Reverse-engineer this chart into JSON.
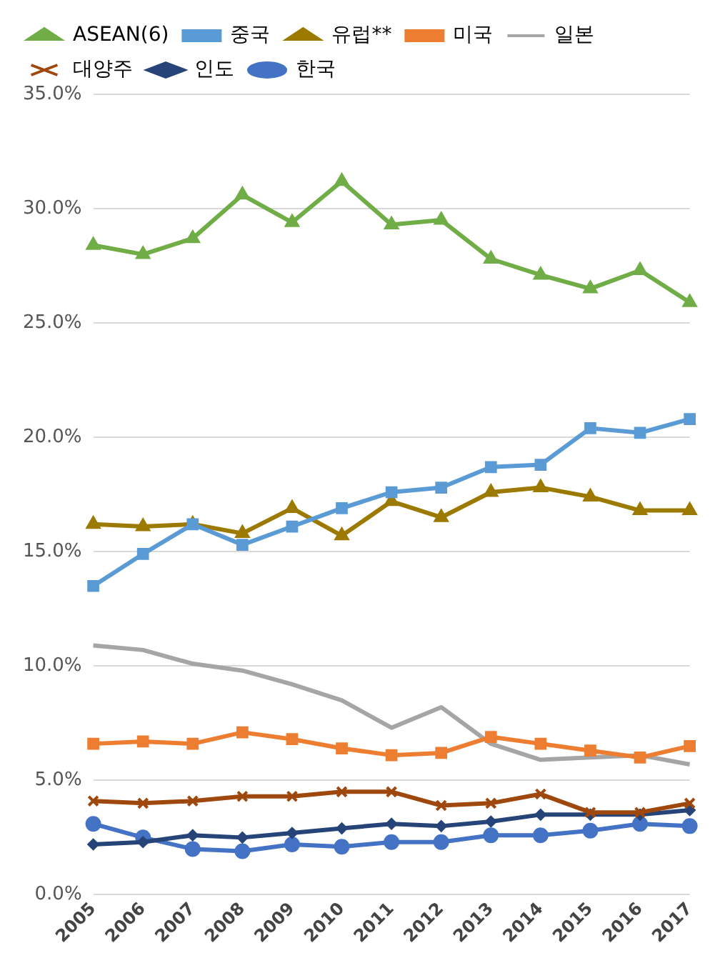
{
  "chart_data": {
    "type": "line",
    "categories": [
      "2005",
      "2006",
      "2007",
      "2008",
      "2009",
      "2010",
      "2011",
      "2012",
      "2013",
      "2014",
      "2015",
      "2016",
      "2017"
    ],
    "series": [
      {
        "name": "ASEAN(6)",
        "color": "#70ad47",
        "marker": "triangle",
        "values": [
          28.4,
          28.0,
          28.7,
          30.6,
          29.4,
          31.2,
          29.3,
          29.5,
          27.8,
          27.1,
          26.5,
          27.3,
          25.9
        ]
      },
      {
        "name": "중국",
        "color": "#5b9bd5",
        "marker": "square",
        "values": [
          13.5,
          14.9,
          16.2,
          15.3,
          16.1,
          16.9,
          17.6,
          17.8,
          18.7,
          18.8,
          20.4,
          20.2,
          20.8
        ]
      },
      {
        "name": "유럽**",
        "color": "#9c7a00",
        "marker": "triangle",
        "values": [
          16.2,
          16.1,
          16.2,
          15.8,
          16.9,
          15.7,
          17.2,
          16.5,
          17.6,
          17.8,
          17.4,
          16.8,
          16.8
        ]
      },
      {
        "name": "미국",
        "color": "#ed7d31",
        "marker": "square",
        "values": [
          6.6,
          6.7,
          6.6,
          7.1,
          6.8,
          6.4,
          6.1,
          6.2,
          6.9,
          6.6,
          6.3,
          6.0,
          6.5
        ]
      },
      {
        "name": "일본",
        "color": "#a5a5a5",
        "marker": "none",
        "values": [
          10.9,
          10.7,
          10.1,
          9.8,
          9.2,
          8.5,
          7.3,
          8.2,
          6.6,
          5.9,
          6.0,
          6.1,
          5.7
        ]
      },
      {
        "name": "대양주",
        "color": "#9e480e",
        "marker": "cross",
        "values": [
          4.1,
          4.0,
          4.1,
          4.3,
          4.3,
          4.5,
          4.5,
          3.9,
          4.0,
          4.4,
          3.6,
          3.6,
          4.0
        ]
      },
      {
        "name": "인도",
        "color": "#264478",
        "marker": "diamond",
        "values": [
          2.2,
          2.3,
          2.6,
          2.5,
          2.7,
          2.9,
          3.1,
          3.0,
          3.2,
          3.5,
          3.5,
          3.5,
          3.7
        ]
      },
      {
        "name": "한국",
        "color": "#4472c4",
        "marker": "circle",
        "values": [
          3.1,
          2.5,
          2.0,
          1.9,
          2.2,
          2.1,
          2.3,
          2.3,
          2.6,
          2.6,
          2.8,
          3.1,
          3.0
        ]
      }
    ],
    "ylim": [
      0,
      35
    ],
    "yticks": [
      {
        "value": 0,
        "label": "0.0%"
      },
      {
        "value": 5,
        "label": "5.0%"
      },
      {
        "value": 10,
        "label": "10.0%"
      },
      {
        "value": 15,
        "label": "15.0%"
      },
      {
        "value": 20,
        "label": "20.0%"
      },
      {
        "value": 25,
        "label": "25.0%"
      },
      {
        "value": 30,
        "label": "30.0%"
      },
      {
        "value": 35,
        "label": "35.0%"
      }
    ],
    "grid": "y",
    "legend": "top"
  }
}
